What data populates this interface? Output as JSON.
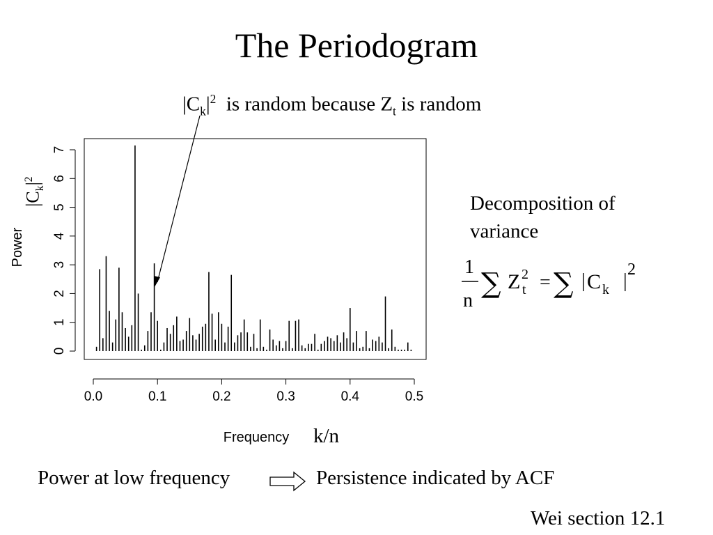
{
  "slide": {
    "title": "The Periodogram",
    "annotation": {
      "c_base": "|C",
      "c_sub": "k",
      "c_bar": "|",
      "c_sup": "2",
      "mid": "  is random because Z",
      "z_sub": "t",
      "end": " is random"
    },
    "decomposition": {
      "line1": "Decomposition of",
      "line2": "variance"
    },
    "formula": {
      "numerator": "1",
      "denominator": "n",
      "sum": "∑",
      "z": "Z",
      "z_sup": "2",
      "z_sub": "t",
      "equals": "=",
      "bar": "|",
      "c": "C",
      "c_sub": "k",
      "sup": "2"
    },
    "y_math_label": {
      "base": "|C",
      "sub": "k",
      "bar": "|",
      "sup": "2"
    },
    "x_math_label": "k/n",
    "bottom_left": "Power at low frequency",
    "bottom_right": "Persistence indicated by ACF",
    "reference": "Wei section 12.1"
  },
  "chart_data": {
    "type": "bar",
    "xlabel": "Frequency",
    "ylabel": "Power",
    "xlim": [
      0.0,
      0.5
    ],
    "ylim": [
      0,
      7
    ],
    "x_ticks": [
      "0.0",
      "0.1",
      "0.2",
      "0.3",
      "0.4",
      "0.5"
    ],
    "y_ticks": [
      "0",
      "1",
      "2",
      "3",
      "4",
      "5",
      "6",
      "7"
    ],
    "grid": false,
    "x": [
      0.005,
      0.01,
      0.015,
      0.02,
      0.025,
      0.03,
      0.035,
      0.04,
      0.045,
      0.05,
      0.055,
      0.06,
      0.065,
      0.07,
      0.075,
      0.08,
      0.085,
      0.09,
      0.095,
      0.1,
      0.105,
      0.11,
      0.115,
      0.12,
      0.125,
      0.13,
      0.135,
      0.14,
      0.145,
      0.15,
      0.155,
      0.16,
      0.165,
      0.17,
      0.175,
      0.18,
      0.185,
      0.19,
      0.195,
      0.2,
      0.205,
      0.21,
      0.215,
      0.22,
      0.225,
      0.23,
      0.235,
      0.24,
      0.245,
      0.25,
      0.255,
      0.26,
      0.265,
      0.27,
      0.275,
      0.28,
      0.285,
      0.29,
      0.295,
      0.3,
      0.305,
      0.31,
      0.315,
      0.32,
      0.325,
      0.33,
      0.335,
      0.34,
      0.345,
      0.35,
      0.355,
      0.36,
      0.365,
      0.37,
      0.375,
      0.38,
      0.385,
      0.39,
      0.395,
      0.4,
      0.405,
      0.41,
      0.415,
      0.42,
      0.425,
      0.43,
      0.435,
      0.44,
      0.445,
      0.45,
      0.455,
      0.46,
      0.465,
      0.47,
      0.475,
      0.48,
      0.485,
      0.49,
      0.495
    ],
    "values": [
      0.15,
      2.85,
      0.45,
      3.3,
      1.4,
      0.3,
      1.1,
      2.9,
      1.35,
      0.8,
      0.5,
      0.9,
      7.15,
      2.0,
      0.05,
      0.2,
      0.7,
      1.35,
      3.05,
      1.05,
      0.05,
      0.3,
      0.8,
      0.6,
      0.9,
      1.2,
      0.35,
      0.4,
      0.7,
      1.15,
      0.55,
      0.4,
      0.6,
      0.85,
      0.95,
      2.75,
      1.3,
      0.4,
      1.35,
      0.95,
      0.3,
      0.85,
      2.65,
      0.3,
      0.55,
      0.65,
      1.1,
      0.65,
      0.15,
      0.6,
      0.1,
      1.1,
      0.15,
      0.05,
      0.75,
      0.4,
      0.2,
      0.35,
      0.1,
      0.35,
      1.05,
      0.1,
      1.05,
      1.1,
      0.2,
      0.1,
      0.25,
      0.25,
      0.6,
      0.05,
      0.25,
      0.35,
      0.5,
      0.45,
      0.35,
      0.55,
      0.3,
      0.65,
      0.45,
      1.5,
      0.3,
      0.7,
      0.1,
      0.15,
      0.7,
      0.1,
      0.4,
      0.35,
      0.5,
      0.3,
      1.9,
      0.1,
      0.75,
      0.15,
      0.05,
      0.05,
      0.05,
      0.3,
      0.05
    ]
  }
}
